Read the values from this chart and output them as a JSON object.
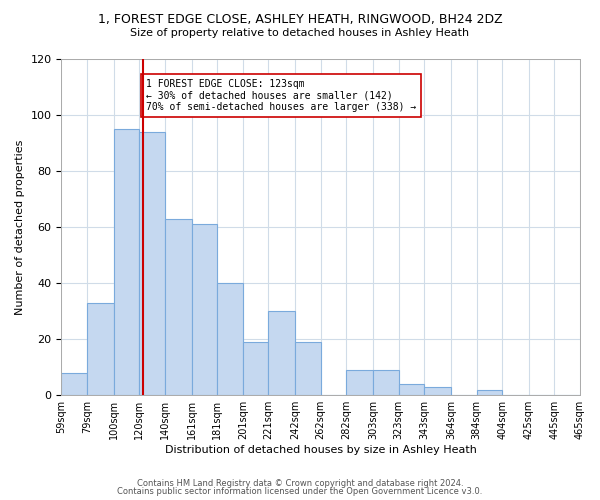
{
  "title": "1, FOREST EDGE CLOSE, ASHLEY HEATH, RINGWOOD, BH24 2DZ",
  "subtitle": "Size of property relative to detached houses in Ashley Heath",
  "xlabel": "Distribution of detached houses by size in Ashley Heath",
  "ylabel": "Number of detached properties",
  "bin_labels": [
    "59sqm",
    "79sqm",
    "100sqm",
    "120sqm",
    "140sqm",
    "161sqm",
    "181sqm",
    "201sqm",
    "221sqm",
    "242sqm",
    "262sqm",
    "282sqm",
    "303sqm",
    "323sqm",
    "343sqm",
    "364sqm",
    "384sqm",
    "404sqm",
    "425sqm",
    "445sqm",
    "465sqm"
  ],
  "bin_edges": [
    59,
    79,
    100,
    120,
    140,
    161,
    181,
    201,
    221,
    242,
    262,
    282,
    303,
    323,
    343,
    364,
    384,
    404,
    425,
    445,
    465
  ],
  "bar_heights": [
    8,
    33,
    95,
    94,
    63,
    61,
    40,
    19,
    30,
    19,
    0,
    9,
    9,
    4,
    3,
    0,
    2,
    0,
    0,
    0
  ],
  "bar_color": "#c5d8f0",
  "bar_edgecolor": "#7aaadc",
  "property_line_x": 123,
  "property_line_color": "#cc0000",
  "annotation_text": "1 FOREST EDGE CLOSE: 123sqm\n← 30% of detached houses are smaller (142)\n70% of semi-detached houses are larger (338) →",
  "annotation_box_color": "#ffffff",
  "annotation_box_edgecolor": "#cc0000",
  "ylim": [
    0,
    120
  ],
  "yticks": [
    0,
    20,
    40,
    60,
    80,
    100,
    120
  ],
  "footer1": "Contains HM Land Registry data © Crown copyright and database right 2024.",
  "footer2": "Contains public sector information licensed under the Open Government Licence v3.0.",
  "bg_color": "#ffffff",
  "grid_color": "#d0dce8"
}
